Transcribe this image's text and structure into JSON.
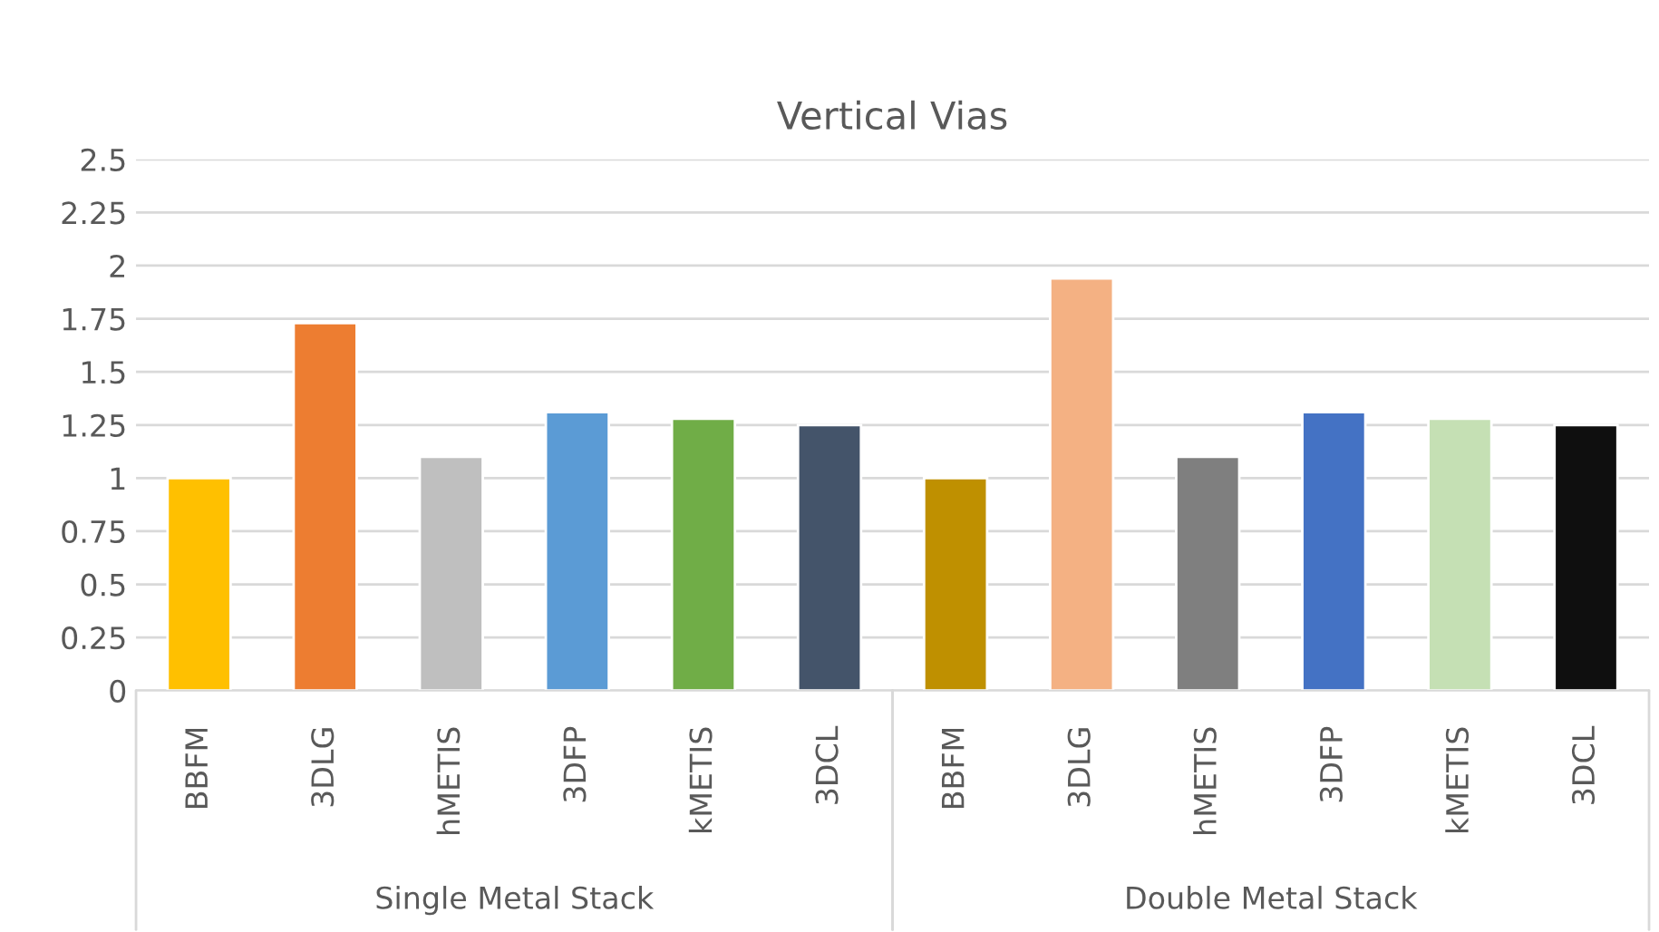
{
  "chart_data": {
    "type": "bar",
    "title": "Vertical Vias",
    "categories": [
      "BBFM",
      "3DLG",
      "hMETIS",
      "3DFP",
      "kMETIS",
      "3DCL",
      "BBFM",
      "3DLG",
      "hMETIS",
      "3DFP",
      "kMETIS",
      "3DCL"
    ],
    "values": [
      1.0,
      1.73,
      1.1,
      1.31,
      1.28,
      1.25,
      1.0,
      1.94,
      1.1,
      1.31,
      1.28,
      1.25
    ],
    "colors": [
      "#ffc000",
      "#ed7d31",
      "#bfbfbf",
      "#5b9bd5",
      "#70ad47",
      "#44546a",
      "#bf9000",
      "#f4b183",
      "#7f7f7f",
      "#4472c4",
      "#c5e0b4",
      "#0f0f0f"
    ],
    "annotations": [
      "Single Metal Stack",
      "Double Metal Stack"
    ],
    "ylim": [
      0,
      2.5
    ],
    "yticks": [
      0,
      0.25,
      0.5,
      0.75,
      1,
      1.25,
      1.5,
      1.75,
      2,
      2.25,
      2.5
    ],
    "grid": "y",
    "legend": false
  }
}
